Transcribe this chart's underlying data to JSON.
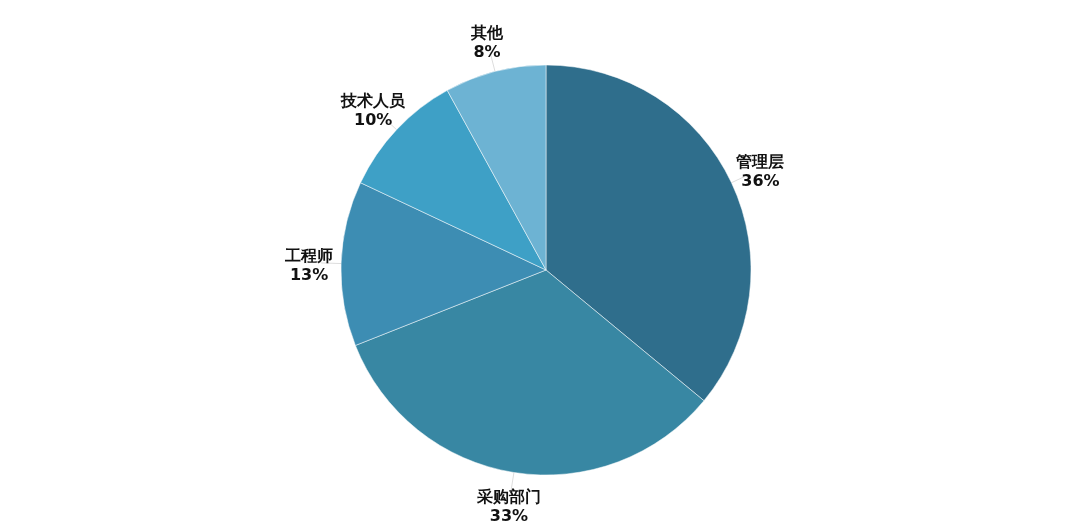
{
  "chart_data": {
    "type": "pie",
    "categories": [
      "管理层",
      "采购部门",
      "工程师",
      "技术人员",
      "其他"
    ],
    "values": [
      36,
      33,
      13,
      10,
      8
    ],
    "value_labels": [
      "36%",
      "33%",
      "13%",
      "10%",
      "8%"
    ],
    "colors": [
      "#2f6e8c",
      "#3887a3",
      "#3d8db3",
      "#3ea0c6",
      "#6db3d3"
    ],
    "legend": false
  }
}
